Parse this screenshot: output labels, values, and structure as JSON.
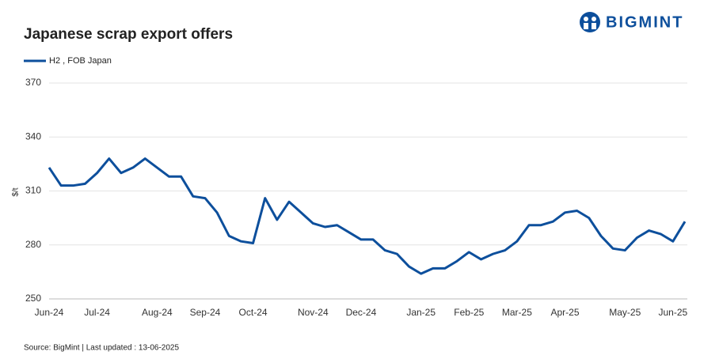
{
  "chart_data": {
    "type": "line",
    "title": "Japanese scrap export offers",
    "brand": "BIGMINT",
    "source": "Source: BigMint  | Last updated : 13-06-2025",
    "y_label": "$/t",
    "categories": [
      "Jun-24",
      null,
      null,
      null,
      "Jul-24",
      null,
      null,
      null,
      null,
      "Aug-24",
      null,
      null,
      null,
      "Sep-24",
      null,
      null,
      null,
      "Oct-24",
      null,
      null,
      null,
      null,
      "Nov-24",
      null,
      null,
      null,
      "Dec-24",
      null,
      null,
      null,
      null,
      "Jan-25",
      null,
      null,
      null,
      "Feb-25",
      null,
      null,
      null,
      "Mar-25",
      null,
      null,
      null,
      "Apr-25",
      null,
      null,
      null,
      null,
      "May-25",
      null,
      null,
      null,
      "Jun-25",
      null
    ],
    "series": [
      {
        "name": "H2 , FOB Japan",
        "color": "#0d4f9c",
        "values": [
          323,
          313,
          313,
          314,
          320,
          328,
          320,
          323,
          328,
          323,
          318,
          318,
          307,
          306,
          298,
          285,
          282,
          281,
          306,
          294,
          304,
          298,
          292,
          290,
          291,
          287,
          283,
          283,
          277,
          275,
          268,
          264,
          267,
          267,
          271,
          276,
          272,
          275,
          277,
          282,
          291,
          291,
          293,
          298,
          299,
          295,
          285,
          278,
          277,
          284,
          288,
          286,
          282,
          293
        ]
      }
    ],
    "ylim": [
      250,
      370
    ],
    "yticks": [
      250,
      280,
      310,
      340,
      370
    ],
    "grid": true
  }
}
